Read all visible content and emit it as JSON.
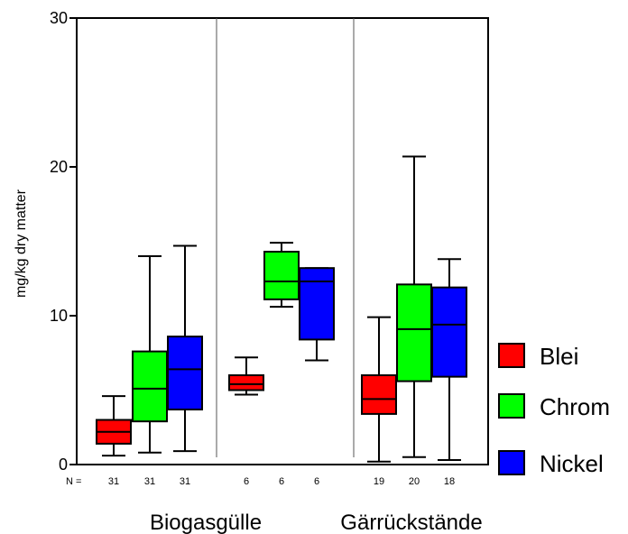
{
  "chart_data": {
    "type": "boxplot",
    "ylabel": "mg/kg dry matter",
    "ylim": [
      0,
      30
    ],
    "yticks": [
      "0",
      "10",
      "20",
      "30"
    ],
    "n_prefix": "N =",
    "legend": [
      {
        "name": "Blei",
        "color": "#ff0000"
      },
      {
        "name": "Chrom",
        "color": "#00ff00"
      },
      {
        "name": "Nickel",
        "color": "#0000ff"
      }
    ],
    "groups": [
      {
        "label": "Biogasgülle",
        "boxes": [
          {
            "series": "Blei",
            "n": "31",
            "min": 0.6,
            "q1": 1.4,
            "median": 2.2,
            "q3": 3.0,
            "max": 4.6
          },
          {
            "series": "Chrom",
            "n": "31",
            "min": 0.8,
            "q1": 2.9,
            "median": 5.1,
            "q3": 7.6,
            "max": 14.0
          },
          {
            "series": "Nickel",
            "n": "31",
            "min": 0.9,
            "q1": 3.7,
            "median": 6.4,
            "q3": 8.6,
            "max": 14.7
          }
        ]
      },
      {
        "label": "",
        "boxes": [
          {
            "series": "Blei",
            "n": "6",
            "min": 4.7,
            "q1": 5.0,
            "median": 5.4,
            "q3": 6.0,
            "max": 7.2
          },
          {
            "series": "Chrom",
            "n": "6",
            "min": 10.6,
            "q1": 11.1,
            "median": 12.3,
            "q3": 14.3,
            "max": 14.9
          },
          {
            "series": "Nickel",
            "n": "6",
            "min": 7.0,
            "q1": 8.4,
            "median": 12.3,
            "q3": 13.2,
            "max": 13.2
          }
        ]
      },
      {
        "label": "Gärrückstände",
        "boxes": [
          {
            "series": "Blei",
            "n": "19",
            "min": 0.2,
            "q1": 3.4,
            "median": 4.4,
            "q3": 6.0,
            "max": 9.9
          },
          {
            "series": "Chrom",
            "n": "20",
            "min": 0.5,
            "q1": 5.6,
            "median": 9.1,
            "q3": 12.1,
            "max": 20.7
          },
          {
            "series": "Nickel",
            "n": "18",
            "min": 0.3,
            "q1": 5.9,
            "median": 9.4,
            "q3": 11.9,
            "max": 13.8
          }
        ]
      }
    ]
  }
}
